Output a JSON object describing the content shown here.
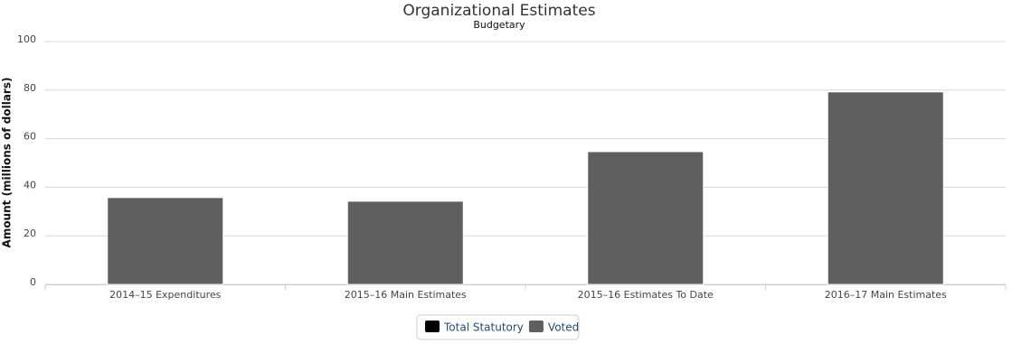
{
  "chart_data": {
    "type": "bar",
    "stacked": true,
    "title": "Organizational Estimates",
    "subtitle": "Budgetary",
    "y_label": "Amount (millions of dollars)",
    "categories": [
      "2014–15 Expenditures",
      "2015–16 Main Estimates",
      "2015–16 Estimates To Date",
      "2016–17 Main Estimates"
    ],
    "series": [
      {
        "name": "Total Statutory",
        "color": "#000000",
        "values": [
          0.3,
          0.3,
          0.3,
          0.3
        ]
      },
      {
        "name": "Voted",
        "color": "#5f5f5f",
        "values": [
          35.8,
          34.3,
          54.7,
          79.3
        ]
      }
    ],
    "ylim": [
      0,
      100
    ],
    "yticks": [
      0,
      20,
      40,
      60,
      80,
      100
    ],
    "grid": true
  }
}
